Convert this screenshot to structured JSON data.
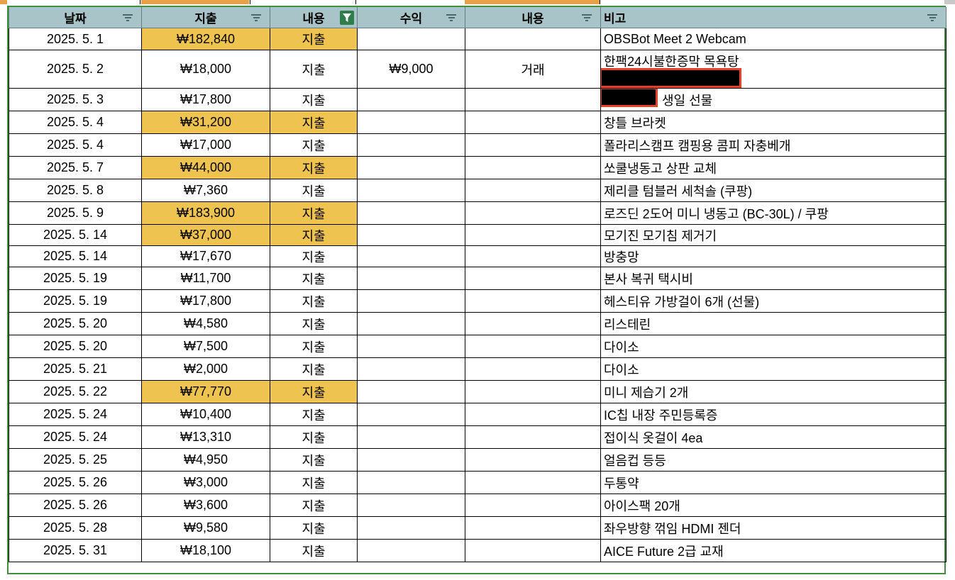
{
  "columns": [
    {
      "label": "날짜",
      "filter": "inactive"
    },
    {
      "label": "지출",
      "filter": "inactive"
    },
    {
      "label": "내용",
      "filter": "active"
    },
    {
      "label": "수익",
      "filter": "inactive"
    },
    {
      "label": "내용",
      "filter": "inactive"
    },
    {
      "label": "비고",
      "filter": "inactive"
    }
  ],
  "colors": {
    "highlight": "#efc34f",
    "header": "#a9c4c8",
    "border": "#3f8f3f",
    "active_filter": "#2e7d4a",
    "redact_outline": "#e8402a"
  },
  "rows": [
    {
      "date": "2025. 5. 1",
      "expense": "₩182,840",
      "type": "지출",
      "income": "",
      "content": "",
      "note": "OBSBot Meet 2 Webcam",
      "highlight": true
    },
    {
      "date": "2025. 5. 2",
      "expense": "₩18,000",
      "type": "지출",
      "income": "₩9,000",
      "content": "거래",
      "note": "한팩24시불한증막 목욕탕",
      "highlight": false
    },
    {
      "date": "2025. 5. 3",
      "expense": "₩17,800",
      "type": "지출",
      "income": "",
      "content": "",
      "note": "생일 선물",
      "highlight": false
    },
    {
      "date": "2025. 5. 4",
      "expense": "₩31,200",
      "type": "지출",
      "income": "",
      "content": "",
      "note": "창틀 브라켓",
      "highlight": true
    },
    {
      "date": "2025. 5. 4",
      "expense": "₩17,000",
      "type": "지출",
      "income": "",
      "content": "",
      "note": "폴라리스캠프 캠핑용 콤피 자충베개",
      "highlight": false
    },
    {
      "date": "2025. 5. 7",
      "expense": "₩44,000",
      "type": "지출",
      "income": "",
      "content": "",
      "note": "쏘쿨냉동고 상판 교체",
      "highlight": true
    },
    {
      "date": "2025. 5. 8",
      "expense": "₩7,360",
      "type": "지출",
      "income": "",
      "content": "",
      "note": "제리클 텀블러 세척솔 (쿠팡)",
      "highlight": false
    },
    {
      "date": "2025. 5. 9",
      "expense": "₩183,900",
      "type": "지출",
      "income": "",
      "content": "",
      "note": "로즈딘 2도어 미니 냉동고 (BC-30L) / 쿠팡",
      "highlight": true
    },
    {
      "date": "2025. 5. 14",
      "expense": "₩37,000",
      "type": "지출",
      "income": "",
      "content": "",
      "note": "모기진 모기침 제거기",
      "highlight": true
    },
    {
      "date": "2025. 5. 14",
      "expense": "₩17,670",
      "type": "지출",
      "income": "",
      "content": "",
      "note": "방충망",
      "highlight": false
    },
    {
      "date": "2025. 5. 19",
      "expense": "₩11,700",
      "type": "지출",
      "income": "",
      "content": "",
      "note": "본사 복귀 택시비",
      "highlight": false
    },
    {
      "date": "2025. 5. 19",
      "expense": "₩17,800",
      "type": "지출",
      "income": "",
      "content": "",
      "note": "헤스티유 가방걸이 6개 (선물)",
      "highlight": false
    },
    {
      "date": "2025. 5. 20",
      "expense": "₩4,580",
      "type": "지출",
      "income": "",
      "content": "",
      "note": "리스테린",
      "highlight": false
    },
    {
      "date": "2025. 5. 20",
      "expense": "₩7,500",
      "type": "지출",
      "income": "",
      "content": "",
      "note": "다이소",
      "highlight": false
    },
    {
      "date": "2025. 5. 21",
      "expense": "₩2,000",
      "type": "지출",
      "income": "",
      "content": "",
      "note": "다이소",
      "highlight": false
    },
    {
      "date": "2025. 5. 22",
      "expense": "₩77,770",
      "type": "지출",
      "income": "",
      "content": "",
      "note": "미니 제습기 2개",
      "highlight": true
    },
    {
      "date": "2025. 5. 24",
      "expense": "₩10,400",
      "type": "지출",
      "income": "",
      "content": "",
      "note": "IC칩 내장 주민등록증",
      "highlight": false
    },
    {
      "date": "2025. 5. 24",
      "expense": "₩13,310",
      "type": "지출",
      "income": "",
      "content": "",
      "note": "접이식 옷걸이 4ea",
      "highlight": false
    },
    {
      "date": "2025. 5. 25",
      "expense": "₩4,950",
      "type": "지출",
      "income": "",
      "content": "",
      "note": "얼음컵 등등",
      "highlight": false
    },
    {
      "date": "2025. 5. 26",
      "expense": "₩3,000",
      "type": "지출",
      "income": "",
      "content": "",
      "note": "두통약",
      "highlight": false
    },
    {
      "date": "2025. 5. 26",
      "expense": "₩3,600",
      "type": "지출",
      "income": "",
      "content": "",
      "note": "아이스팩 20개",
      "highlight": false
    },
    {
      "date": "2025. 5. 28",
      "expense": "₩9,580",
      "type": "지출",
      "income": "",
      "content": "",
      "note": "좌우방향 꺾임 HDMI 젠더",
      "highlight": false
    },
    {
      "date": "2025. 5. 31",
      "expense": "₩18,100",
      "type": "지출",
      "income": "",
      "content": "",
      "note": "AICE Future 2급 교재",
      "highlight": false
    }
  ]
}
